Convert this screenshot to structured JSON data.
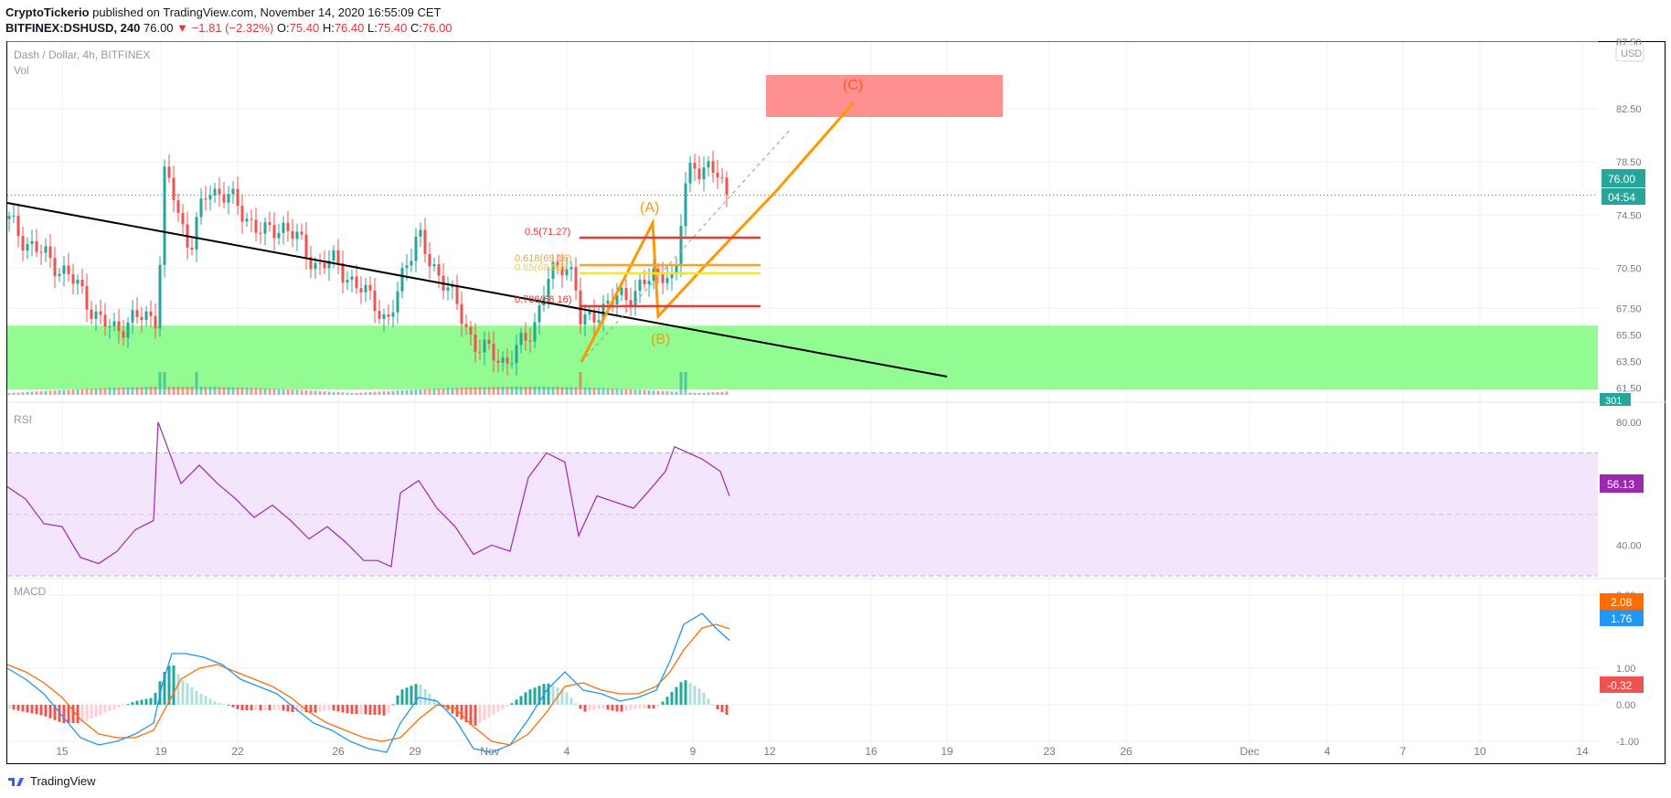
{
  "header": {
    "publisher": "CryptoTickerio",
    "published_text": "published on TradingView.com, November 14, 2020 16:55:09 CET",
    "symbol": "BITFINEX:DSHUSD, 240",
    "last": "76.00",
    "change": "▼ −1.81 (−2.32%)",
    "ohlc": [
      {
        "label": "O:",
        "value": "75.40"
      },
      {
        "label": "H:",
        "value": "76.40"
      },
      {
        "label": "L:",
        "value": "75.40"
      },
      {
        "label": "C:",
        "value": "76.00"
      }
    ]
  },
  "panes": {
    "main_title": "Dash / Dollar, 4h, BITFINEX",
    "vol_label": "Vol",
    "rsi_label": "RSI",
    "macd_label": "MACD",
    "currency_badge": "USD"
  },
  "badges": {
    "price": "76.00",
    "countdown": "04:54",
    "volume": "301",
    "rsi": "56.13",
    "macd_signal": "2.08",
    "macd_line": "1.76",
    "macd_hist": "-0.32"
  },
  "annotations": {
    "wave_a": "(A)",
    "wave_b": "(B)",
    "wave_c": "(C)",
    "fib_50": "0.5(71.27)",
    "fib_618": "0.618(69.16)",
    "fib_65": "0.65(68.59)",
    "fib_786": "0.786(66.16)"
  },
  "colors": {
    "up": "#26a69a",
    "down": "#ef5350",
    "rsi": "#9c27b0",
    "macd": "#2196f3",
    "signal": "#ff6d00",
    "support_zone": "#8cfc8c",
    "target_zone": "#ff8a8a",
    "wave": "#ff9800"
  },
  "footer": {
    "brand": "TradingView"
  },
  "chart_data": [
    {
      "type": "candlestick",
      "title": "Dash / Dollar, 4h, BITFINEX",
      "x_ticks": [
        "15",
        "19",
        "22",
        "26",
        "29",
        "Nov",
        "4",
        "9",
        "12",
        "16",
        "19",
        "23",
        "26",
        "Dec",
        "4",
        "7",
        "10",
        "14"
      ],
      "y_ticks": [
        61.5,
        63.5,
        65.5,
        67.5,
        70.5,
        74.5,
        78.5,
        82.5,
        87.5
      ],
      "ylim": [
        61.0,
        87.5
      ],
      "price_path": [
        [
          0,
          74.2
        ],
        [
          20,
          72.5
        ],
        [
          50,
          71.0
        ],
        [
          80,
          69.0
        ],
        [
          100,
          66.5
        ],
        [
          115,
          66.0
        ],
        [
          130,
          66.3
        ],
        [
          150,
          67.0
        ],
        [
          165,
          66.8
        ],
        [
          170,
          77.5
        ],
        [
          180,
          76.5
        ],
        [
          190,
          74.0
        ],
        [
          200,
          72.0
        ],
        [
          210,
          74.5
        ],
        [
          220,
          76.5
        ],
        [
          240,
          76.0
        ],
        [
          260,
          74.5
        ],
        [
          280,
          73.0
        ],
        [
          300,
          73.8
        ],
        [
          320,
          72.5
        ],
        [
          340,
          70.5
        ],
        [
          360,
          71.2
        ],
        [
          380,
          69.0
        ],
        [
          400,
          68.5
        ],
        [
          415,
          66.0
        ],
        [
          425,
          68.0
        ],
        [
          435,
          71.0
        ],
        [
          450,
          73.0
        ],
        [
          460,
          71.0
        ],
        [
          480,
          69.5
        ],
        [
          495,
          67.0
        ],
        [
          510,
          65.0
        ],
        [
          525,
          64.2
        ],
        [
          545,
          63.5
        ],
        [
          560,
          64.5
        ],
        [
          575,
          66.0
        ],
        [
          590,
          69.5
        ],
        [
          610,
          71.0
        ],
        [
          620,
          70.0
        ],
        [
          628,
          66.0
        ],
        [
          640,
          67.0
        ],
        [
          660,
          68.0
        ],
        [
          680,
          68.5
        ],
        [
          700,
          69.5
        ],
        [
          720,
          70.5
        ],
        [
          730,
          69.0
        ],
        [
          740,
          76.0
        ],
        [
          750,
          79.0
        ],
        [
          760,
          77.5
        ],
        [
          770,
          78.0
        ],
        [
          780,
          77.2
        ],
        [
          790,
          76.0
        ]
      ]
    },
    {
      "type": "bar",
      "title": "Vol",
      "last_value": 301
    },
    {
      "type": "line",
      "title": "RSI",
      "y_ticks": [
        40.0,
        60.0,
        80.0
      ],
      "ylim": [
        30,
        85
      ],
      "band": [
        30,
        70
      ],
      "series": [
        {
          "values": [
            [
              0,
              59
            ],
            [
              20,
              55
            ],
            [
              40,
              47
            ],
            [
              60,
              46
            ],
            [
              80,
              36
            ],
            [
              100,
              34
            ],
            [
              120,
              38
            ],
            [
              140,
              45
            ],
            [
              160,
              48
            ],
            [
              165,
              80
            ],
            [
              175,
              72
            ],
            [
              190,
              60
            ],
            [
              210,
              66
            ],
            [
              230,
              60
            ],
            [
              250,
              55
            ],
            [
              270,
              49
            ],
            [
              290,
              53
            ],
            [
              310,
              48
            ],
            [
              330,
              42
            ],
            [
              350,
              46
            ],
            [
              370,
              41
            ],
            [
              390,
              35
            ],
            [
              405,
              35
            ],
            [
              420,
              33
            ],
            [
              430,
              57
            ],
            [
              450,
              61
            ],
            [
              470,
              52
            ],
            [
              490,
              46
            ],
            [
              510,
              37
            ],
            [
              530,
              40
            ],
            [
              550,
              38
            ],
            [
              570,
              62
            ],
            [
              590,
              70
            ],
            [
              610,
              67
            ],
            [
              625,
              43
            ],
            [
              645,
              56
            ],
            [
              665,
              54
            ],
            [
              685,
              52
            ],
            [
              700,
              57
            ],
            [
              720,
              64
            ],
            [
              730,
              72
            ],
            [
              745,
              70
            ],
            [
              760,
              68
            ],
            [
              780,
              64
            ],
            [
              790,
              56
            ]
          ]
        }
      ]
    },
    {
      "type": "line",
      "title": "MACD",
      "y_ticks": [
        -1.0,
        0.0,
        1.0,
        3.0
      ],
      "ylim": [
        -1.6,
        3.4
      ],
      "series": [
        {
          "values": [
            [
              0,
              1.0
            ],
            [
              20,
              0.7
            ],
            [
              40,
              0.3
            ],
            [
              60,
              -0.3
            ],
            [
              80,
              -0.9
            ],
            [
              100,
              -1.1
            ],
            [
              120,
              -1.0
            ],
            [
              140,
              -0.8
            ],
            [
              160,
              -0.5
            ],
            [
              170,
              0.6
            ],
            [
              180,
              1.4
            ],
            [
              195,
              1.4
            ],
            [
              215,
              1.3
            ],
            [
              235,
              1.1
            ],
            [
              255,
              0.7
            ],
            [
              275,
              0.5
            ],
            [
              295,
              0.3
            ],
            [
              315,
              -0.1
            ],
            [
              335,
              -0.5
            ],
            [
              355,
              -0.7
            ],
            [
              375,
              -1.0
            ],
            [
              395,
              -1.2
            ],
            [
              415,
              -1.3
            ],
            [
              430,
              -0.5
            ],
            [
              450,
              0.2
            ],
            [
              470,
              0.1
            ],
            [
              490,
              -0.4
            ],
            [
              510,
              -1.2
            ],
            [
              530,
              -1.3
            ],
            [
              550,
              -1.1
            ],
            [
              570,
              -0.4
            ],
            [
              590,
              0.4
            ],
            [
              610,
              0.9
            ],
            [
              630,
              0.4
            ],
            [
              650,
              0.3
            ],
            [
              670,
              0.1
            ],
            [
              690,
              0.2
            ],
            [
              710,
              0.4
            ],
            [
              725,
              1.2
            ],
            [
              740,
              2.2
            ],
            [
              760,
              2.5
            ],
            [
              775,
              2.1
            ],
            [
              790,
              1.76
            ]
          ]
        },
        {
          "values": [
            [
              0,
              1.1
            ],
            [
              20,
              0.9
            ],
            [
              40,
              0.6
            ],
            [
              60,
              0.2
            ],
            [
              80,
              -0.4
            ],
            [
              100,
              -0.8
            ],
            [
              120,
              -0.9
            ],
            [
              140,
              -0.9
            ],
            [
              160,
              -0.7
            ],
            [
              175,
              0.0
            ],
            [
              190,
              0.7
            ],
            [
              210,
              1.0
            ],
            [
              230,
              1.1
            ],
            [
              250,
              0.9
            ],
            [
              270,
              0.7
            ],
            [
              290,
              0.5
            ],
            [
              310,
              0.2
            ],
            [
              330,
              -0.2
            ],
            [
              350,
              -0.5
            ],
            [
              370,
              -0.7
            ],
            [
              390,
              -0.9
            ],
            [
              410,
              -1.0
            ],
            [
              430,
              -0.9
            ],
            [
              450,
              -0.4
            ],
            [
              470,
              0.0
            ],
            [
              490,
              -0.1
            ],
            [
              510,
              -0.6
            ],
            [
              530,
              -1.0
            ],
            [
              550,
              -1.1
            ],
            [
              570,
              -0.8
            ],
            [
              590,
              -0.2
            ],
            [
              610,
              0.5
            ],
            [
              630,
              0.6
            ],
            [
              650,
              0.4
            ],
            [
              670,
              0.3
            ],
            [
              690,
              0.3
            ],
            [
              710,
              0.5
            ],
            [
              725,
              0.9
            ],
            [
              740,
              1.5
            ],
            [
              760,
              2.1
            ],
            [
              775,
              2.2
            ],
            [
              790,
              2.08
            ]
          ]
        }
      ]
    }
  ]
}
